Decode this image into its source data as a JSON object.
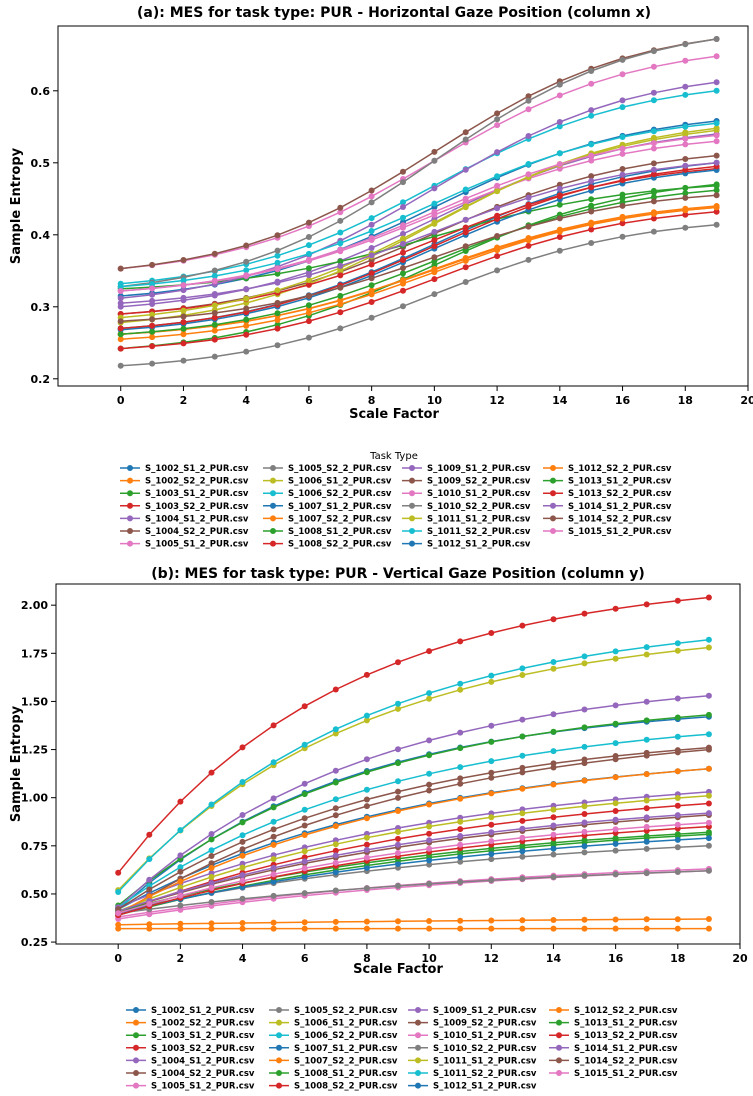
{
  "series_names": [
    "S_1002_S1_2_PUR.csv",
    "S_1002_S2_2_PUR.csv",
    "S_1003_S1_2_PUR.csv",
    "S_1003_S2_2_PUR.csv",
    "S_1004_S1_2_PUR.csv",
    "S_1004_S2_2_PUR.csv",
    "S_1005_S1_2_PUR.csv",
    "S_1005_S2_2_PUR.csv",
    "S_1006_S1_2_PUR.csv",
    "S_1006_S2_2_PUR.csv",
    "S_1007_S1_2_PUR.csv",
    "S_1007_S2_2_PUR.csv",
    "S_1008_S1_2_PUR.csv",
    "S_1008_S2_2_PUR.csv",
    "S_1009_S1_2_PUR.csv",
    "S_1009_S2_2_PUR.csv",
    "S_1010_S1_2_PUR.csv",
    "S_1010_S2_2_PUR.csv",
    "S_1011_S1_2_PUR.csv",
    "S_1011_S2_2_PUR.csv",
    "S_1012_S1_2_PUR.csv",
    "S_1012_S2_2_PUR.csv",
    "S_1013_S1_2_PUR.csv",
    "S_1013_S2_2_PUR.csv",
    "S_1014_S1_2_PUR.csv",
    "S_1014_S2_2_PUR.csv",
    "S_1015_S1_2_PUR.csv"
  ],
  "series_colors": [
    "#1f77b4",
    "#ff7f0e",
    "#2ca02c",
    "#d62728",
    "#9467bd",
    "#8c564b",
    "#e377c2",
    "#7f7f7f",
    "#bcbd22",
    "#17becf",
    "#1f77b4",
    "#ff7f0e",
    "#2ca02c",
    "#d62728",
    "#9467bd",
    "#8c564b",
    "#e377c2",
    "#7f7f7f",
    "#bcbd22",
    "#17becf",
    "#1f77b4",
    "#ff7f0e",
    "#2ca02c",
    "#d62728",
    "#9467bd",
    "#8c564b",
    "#e377c2"
  ],
  "chart_data": [
    {
      "type": "line",
      "title": "(a): MES for task type: PUR - Horizontal Gaze Position (column x)",
      "xlabel": "Scale Factor",
      "ylabel": "Sample Entropy",
      "xlim": [
        -2,
        20
      ],
      "ylim": [
        0.19,
        0.69
      ],
      "xticks": [
        0,
        2,
        4,
        6,
        8,
        10,
        12,
        14,
        16,
        18,
        20
      ],
      "yticks": [
        0.2,
        0.3,
        0.4,
        0.5,
        0.6
      ],
      "ytick_labels": [
        "0.2",
        "0.3",
        "0.4",
        "0.5",
        "0.6"
      ],
      "legend_title": "Task Type",
      "legend_position": "below",
      "x": [
        0,
        1,
        2,
        3,
        4,
        5,
        6,
        7,
        8,
        9,
        10,
        11,
        12,
        13,
        14,
        15,
        16,
        17,
        18,
        19
      ],
      "series": [
        {
          "name": "S_1002_S1_2_PUR.csv",
          "start": 0.315,
          "end": 0.558
        },
        {
          "name": "S_1002_S2_2_PUR.csv",
          "start": 0.262,
          "end": 0.438
        },
        {
          "name": "S_1003_S1_2_PUR.csv",
          "start": 0.242,
          "end": 0.47
        },
        {
          "name": "S_1003_S2_2_PUR.csv",
          "start": 0.242,
          "end": 0.432
        },
        {
          "name": "S_1004_S1_2_PUR.csv",
          "start": 0.3,
          "end": 0.54
        },
        {
          "name": "S_1004_S2_2_PUR.csv",
          "start": 0.29,
          "end": 0.51
        },
        {
          "name": "S_1005_S1_2_PUR.csv",
          "start": 0.353,
          "end": 0.648
        },
        {
          "name": "S_1005_S2_2_PUR.csv",
          "start": 0.218,
          "end": 0.414
        },
        {
          "name": "S_1006_S1_2_PUR.csv",
          "start": 0.278,
          "end": 0.548
        },
        {
          "name": "S_1006_S2_2_PUR.csv",
          "start": 0.332,
          "end": 0.6
        },
        {
          "name": "S_1007_S1_2_PUR.csv",
          "start": 0.27,
          "end": 0.5
        },
        {
          "name": "S_1007_S2_2_PUR.csv",
          "start": 0.262,
          "end": 0.44
        },
        {
          "name": "S_1008_S1_2_PUR.csv",
          "start": 0.325,
          "end": 0.468
        },
        {
          "name": "S_1008_S2_2_PUR.csv",
          "start": 0.29,
          "end": 0.492
        },
        {
          "name": "S_1009_S1_2_PUR.csv",
          "start": 0.312,
          "end": 0.612
        },
        {
          "name": "S_1009_S2_2_PUR.csv",
          "start": 0.353,
          "end": 0.672
        },
        {
          "name": "S_1010_S1_2_PUR.csv",
          "start": 0.322,
          "end": 0.53
        },
        {
          "name": "S_1010_S2_2_PUR.csv",
          "start": 0.328,
          "end": 0.672
        },
        {
          "name": "S_1011_S1_2_PUR.csv",
          "start": 0.285,
          "end": 0.545
        },
        {
          "name": "S_1011_S2_2_PUR.csv",
          "start": 0.328,
          "end": 0.555
        },
        {
          "name": "S_1012_S1_2_PUR.csv",
          "start": 0.268,
          "end": 0.49
        },
        {
          "name": "S_1012_S2_2_PUR.csv",
          "start": 0.255,
          "end": 0.438
        },
        {
          "name": "S_1013_S1_2_PUR.csv",
          "start": 0.262,
          "end": 0.462
        },
        {
          "name": "S_1013_S2_2_PUR.csv",
          "start": 0.27,
          "end": 0.495
        },
        {
          "name": "S_1014_S1_2_PUR.csv",
          "start": 0.305,
          "end": 0.5
        },
        {
          "name": "S_1014_S2_2_PUR.csv",
          "start": 0.28,
          "end": 0.455
        },
        {
          "name": "S_1015_S1_2_PUR.csv",
          "start": 0.322,
          "end": 0.538
        }
      ]
    },
    {
      "type": "line",
      "title": "(b): MES for task type: PUR - Vertical Gaze Position (column y)",
      "xlabel": "Scale Factor",
      "ylabel": "Sample Entropy",
      "xlim": [
        -2,
        20
      ],
      "ylim": [
        0.24,
        2.11
      ],
      "xticks": [
        0,
        2,
        4,
        6,
        8,
        10,
        12,
        14,
        16,
        18,
        20
      ],
      "yticks": [
        0.25,
        0.5,
        0.75,
        1.0,
        1.25,
        1.5,
        1.75,
        2.0
      ],
      "ytick_labels": [
        "0.25",
        "0.50",
        "0.75",
        "1.00",
        "1.25",
        "1.50",
        "1.75",
        "2.00"
      ],
      "legend_position": "below",
      "x": [
        0,
        1,
        2,
        3,
        4,
        5,
        6,
        7,
        8,
        9,
        10,
        11,
        12,
        13,
        14,
        15,
        16,
        17,
        18,
        19
      ],
      "series": [
        {
          "name": "S_1002_S1_2_PUR.csv",
          "start": 0.42,
          "end": 1.42,
          "curve": 2.6
        },
        {
          "name": "S_1002_S2_2_PUR.csv",
          "start": 0.32,
          "end": 0.32,
          "curve": 1.0
        },
        {
          "name": "S_1003_S1_2_PUR.csv",
          "start": 0.44,
          "end": 1.43,
          "curve": 2.4
        },
        {
          "name": "S_1003_S2_2_PUR.csv",
          "start": 0.61,
          "end": 2.04,
          "curve": 2.6
        },
        {
          "name": "S_1004_S1_2_PUR.csv",
          "start": 0.43,
          "end": 1.53,
          "curve": 2.4
        },
        {
          "name": "S_1004_S2_2_PUR.csv",
          "start": 0.41,
          "end": 0.91,
          "curve": 1.6
        },
        {
          "name": "S_1005_S1_2_PUR.csv",
          "start": 0.38,
          "end": 0.63,
          "curve": 1.5
        },
        {
          "name": "S_1005_S2_2_PUR.csv",
          "start": 0.41,
          "end": 0.75,
          "curve": 1.6
        },
        {
          "name": "S_1006_S1_2_PUR.csv",
          "start": 0.52,
          "end": 1.78,
          "curve": 2.4
        },
        {
          "name": "S_1006_S2_2_PUR.csv",
          "start": 0.43,
          "end": 1.33,
          "curve": 2.2
        },
        {
          "name": "S_1007_S1_2_PUR.csv",
          "start": 0.42,
          "end": 1.15,
          "curve": 2.0
        },
        {
          "name": "S_1007_S2_2_PUR.csv",
          "start": 0.34,
          "end": 0.37,
          "curve": 1.0
        },
        {
          "name": "S_1008_S1_2_PUR.csv",
          "start": 0.39,
          "end": 0.81,
          "curve": 1.6
        },
        {
          "name": "S_1008_S2_2_PUR.csv",
          "start": 0.4,
          "end": 0.97,
          "curve": 1.7
        },
        {
          "name": "S_1009_S1_2_PUR.csv",
          "start": 0.43,
          "end": 1.03,
          "curve": 1.8
        },
        {
          "name": "S_1009_S2_2_PUR.csv",
          "start": 0.39,
          "end": 1.25,
          "curve": 2.0
        },
        {
          "name": "S_1010_S1_2_PUR.csv",
          "start": 0.37,
          "end": 0.62,
          "curve": 1.5
        },
        {
          "name": "S_1010_S2_2_PUR.csv",
          "start": 0.4,
          "end": 0.62,
          "curve": 1.4
        },
        {
          "name": "S_1011_S1_2_PUR.csv",
          "start": 0.41,
          "end": 1.01,
          "curve": 1.8
        },
        {
          "name": "S_1011_S2_2_PUR.csv",
          "start": 0.51,
          "end": 1.82,
          "curve": 2.4
        },
        {
          "name": "S_1012_S1_2_PUR.csv",
          "start": 0.4,
          "end": 0.79,
          "curve": 1.5
        },
        {
          "name": "S_1012_S2_2_PUR.csv",
          "start": 0.4,
          "end": 1.15,
          "curve": 2.0
        },
        {
          "name": "S_1013_S1_2_PUR.csv",
          "start": 0.41,
          "end": 0.82,
          "curve": 1.6
        },
        {
          "name": "S_1013_S2_2_PUR.csv",
          "start": 0.39,
          "end": 0.85,
          "curve": 1.6
        },
        {
          "name": "S_1014_S1_2_PUR.csv",
          "start": 0.41,
          "end": 0.92,
          "curve": 1.7
        },
        {
          "name": "S_1014_S2_2_PUR.csv",
          "start": 0.42,
          "end": 1.26,
          "curve": 2.2
        },
        {
          "name": "S_1015_S1_2_PUR.csv",
          "start": 0.4,
          "end": 0.87,
          "curve": 1.6
        }
      ]
    }
  ]
}
